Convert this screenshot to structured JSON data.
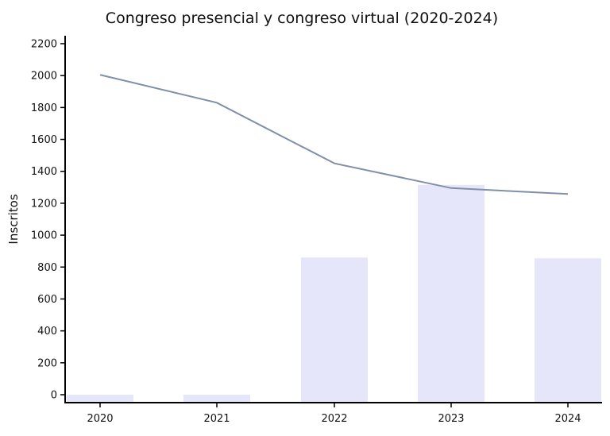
{
  "chart_data": {
    "type": "bar+line",
    "title": "Congreso presencial y congreso virtual (2020-2024)",
    "xlabel": "",
    "ylabel": "Inscritos",
    "categories": [
      "2020",
      "2021",
      "2022",
      "2023",
      "2024"
    ],
    "y_ticks": [
      "0",
      "200",
      "400",
      "600",
      "800",
      "1000",
      "1200",
      "1400",
      "1600",
      "1800",
      "2000",
      "2200"
    ],
    "ylim": [
      0,
      2200
    ],
    "grid": false,
    "legend": "none",
    "series": [
      {
        "type": "bar",
        "values": [
          0,
          0,
          860,
          1315,
          855
        ],
        "color": "#e6e6fa"
      },
      {
        "type": "line",
        "values": [
          2005,
          1830,
          1450,
          1295,
          1258
        ],
        "color": "#8090a8"
      }
    ]
  }
}
